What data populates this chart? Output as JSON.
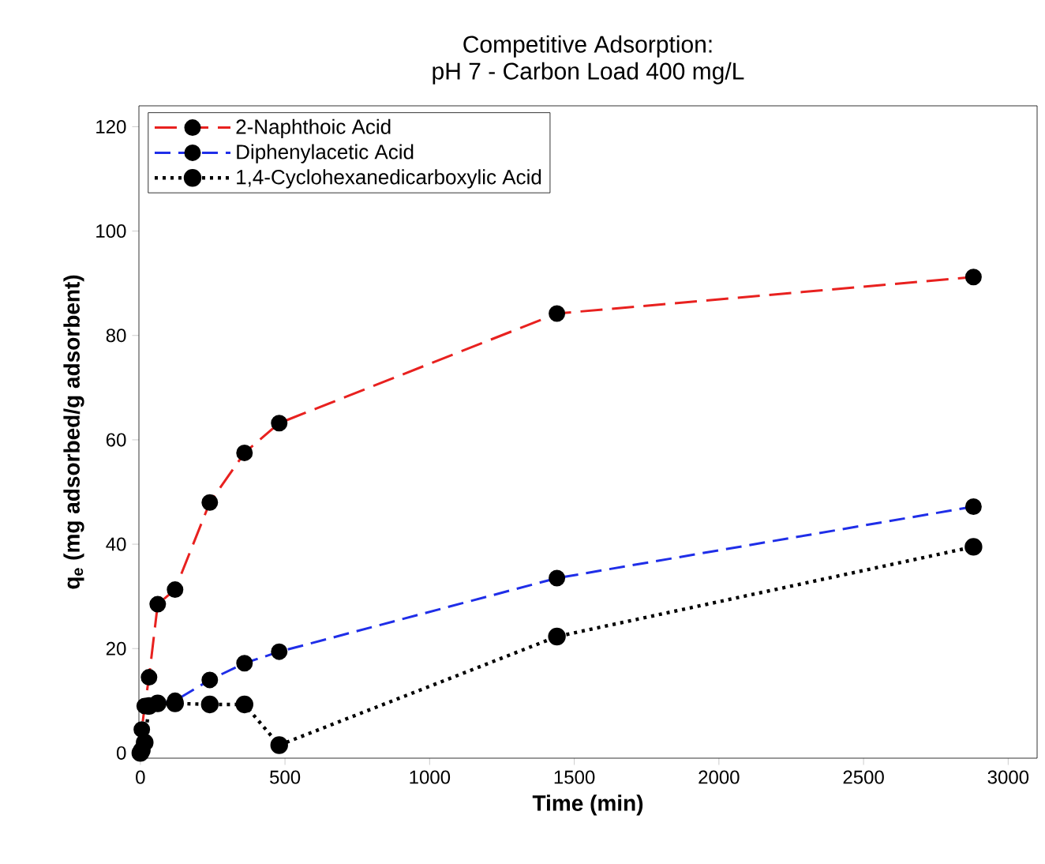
{
  "chart_data": {
    "type": "line",
    "title": "Competitive Adsorption:\npH 7 - Carbon Load 400 mg/L",
    "xlabel": "Time (min)",
    "ylabel": "q$_{e}$ (mg adsorbed/g adsorbent)",
    "x": [
      0,
      5,
      15,
      30,
      60,
      120,
      240,
      360,
      480,
      1440,
      2880
    ],
    "series": [
      {
        "name": "2-Naphthoic Acid",
        "color": "#e8211f",
        "line_style": "dashed",
        "values": [
          0,
          4.5,
          9,
          14.5,
          28.5,
          31.3,
          48,
          57.5,
          63.2,
          84.2,
          91.2
        ]
      },
      {
        "name": "Diphenylacetic Acid",
        "color": "#1f2ee8",
        "line_style": "dashed",
        "values": [
          null,
          null,
          null,
          null,
          9.5,
          10,
          14,
          17.2,
          19.4,
          33.5,
          47.2
        ]
      },
      {
        "name": "1,4-Cyclohexanedicarboxylic Acid",
        "color": "#000000",
        "line_style": "dotted",
        "values": [
          0,
          0.5,
          2,
          9,
          9.5,
          9.5,
          9.3,
          9.3,
          1.5,
          22.3,
          39.5
        ]
      }
    ],
    "xlim": [
      -5,
      3100
    ],
    "ylim": [
      -1,
      124
    ],
    "xticks": [
      0,
      500,
      1000,
      1500,
      2000,
      2500,
      3000
    ],
    "yticks": [
      0,
      20,
      40,
      60,
      80,
      100,
      120
    ],
    "marker": "circle",
    "legend": "top left",
    "grid": false
  }
}
